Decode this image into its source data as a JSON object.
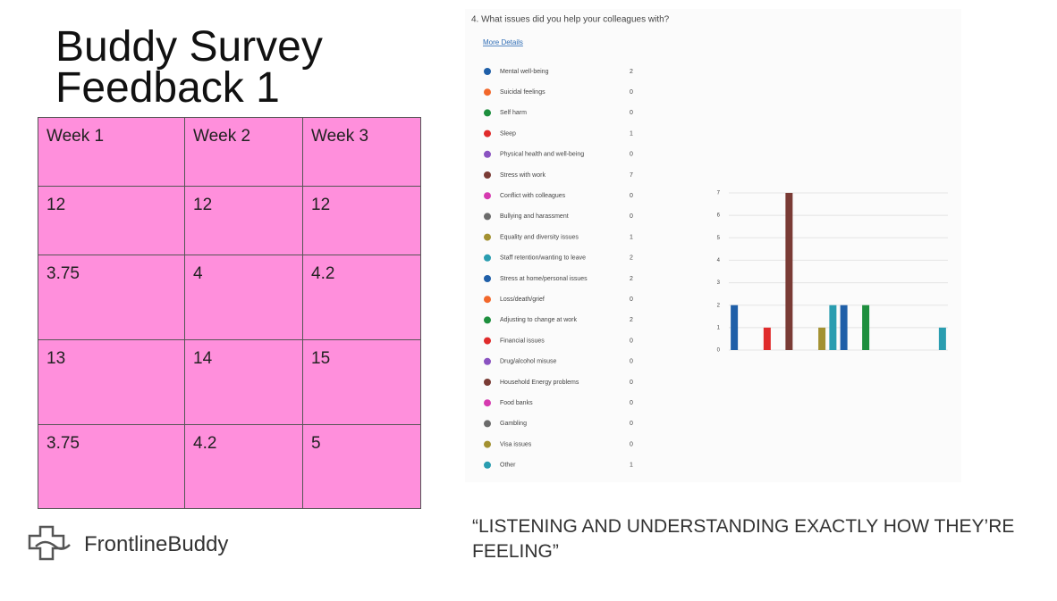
{
  "title": "Buddy Survey Feedback 1",
  "table": {
    "header": [
      "Week 1",
      "Week 2",
      "Week 3"
    ],
    "rows": [
      [
        "12",
        "12",
        "12"
      ],
      [
        "3.75",
        "4",
        "4.2"
      ],
      [
        "13",
        "14",
        "15"
      ],
      [
        "3.75",
        "4.2",
        "5"
      ]
    ]
  },
  "logo": "FrontlineBuddy",
  "quote": "“LISTENING AND UNDERSTANDING EXACTLY HOW THEY’RE FEELING”",
  "chart_data": {
    "type": "bar",
    "title": "4.  What issues did you help your colleagues with?",
    "link": "More Details",
    "categories": [
      "Mental well-being",
      "Suicidal feelings",
      "Self harm",
      "Sleep",
      "Physical health and well-being",
      "Stress with work",
      "Conflict with colleagues",
      "Bullying and harassment",
      "Equality and diversity issues",
      "Staff retention/wanting to leave",
      "Stress at home/personal issues",
      "Loss/death/grief",
      "Adjusting to change at work",
      "Financial issues",
      "Drug/alcohol misuse",
      "Household Energy problems",
      "Food banks",
      "Gambling",
      "Visa issues",
      "Other"
    ],
    "values": [
      2,
      0,
      0,
      1,
      0,
      7,
      0,
      0,
      1,
      2,
      2,
      0,
      2,
      0,
      0,
      0,
      0,
      0,
      0,
      1
    ],
    "colors": [
      "#1f5fa8",
      "#f2672a",
      "#1e8f3e",
      "#e02b2b",
      "#8a53c1",
      "#7a3b35",
      "#d63ab0",
      "#6b6b6b",
      "#a39131",
      "#2a9db0",
      "#1f5fa8",
      "#f2672a",
      "#1e8f3e",
      "#e02b2b",
      "#8a53c1",
      "#7a3b35",
      "#d63ab0",
      "#6b6b6b",
      "#a39131",
      "#2a9db0"
    ],
    "ylim": [
      0,
      7
    ],
    "yticks": [
      0,
      1,
      2,
      3,
      4,
      5,
      6,
      7
    ],
    "grid": true
  }
}
